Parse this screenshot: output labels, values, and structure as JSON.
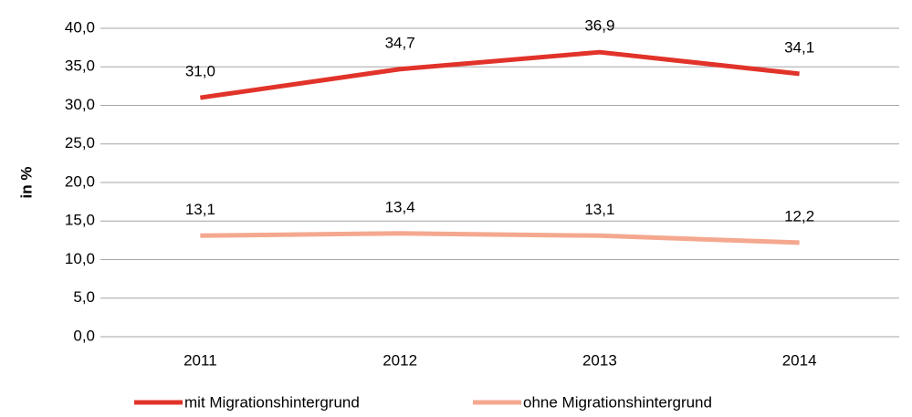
{
  "chart_data": {
    "type": "line",
    "ylabel": "in %",
    "categories": [
      "2011",
      "2012",
      "2013",
      "2014"
    ],
    "series": [
      {
        "name": "mit Migrationshintergrund",
        "color": "#e1332a",
        "values": [
          31.0,
          34.7,
          36.9,
          34.1
        ],
        "value_labels": [
          "31,0",
          "34,7",
          "36,9",
          "34,1"
        ]
      },
      {
        "name": "ohne Migrationshintergrund",
        "color": "#f4a88f",
        "values": [
          13.1,
          13.4,
          13.1,
          12.2
        ],
        "value_labels": [
          "13,1",
          "13,4",
          "13,1",
          "12,2"
        ]
      }
    ],
    "ylim": [
      0,
      40
    ],
    "yticks": [
      {
        "value": 0,
        "label": "0,0"
      },
      {
        "value": 5,
        "label": "5,0"
      },
      {
        "value": 10,
        "label": "10,0"
      },
      {
        "value": 15,
        "label": "15,0"
      },
      {
        "value": 20,
        "label": "20,0"
      },
      {
        "value": 25,
        "label": "25,0"
      },
      {
        "value": 30,
        "label": "30,0"
      },
      {
        "value": 35,
        "label": "35,0"
      },
      {
        "value": 40,
        "label": "40,0"
      }
    ],
    "grid": true,
    "legend": "bottom"
  }
}
